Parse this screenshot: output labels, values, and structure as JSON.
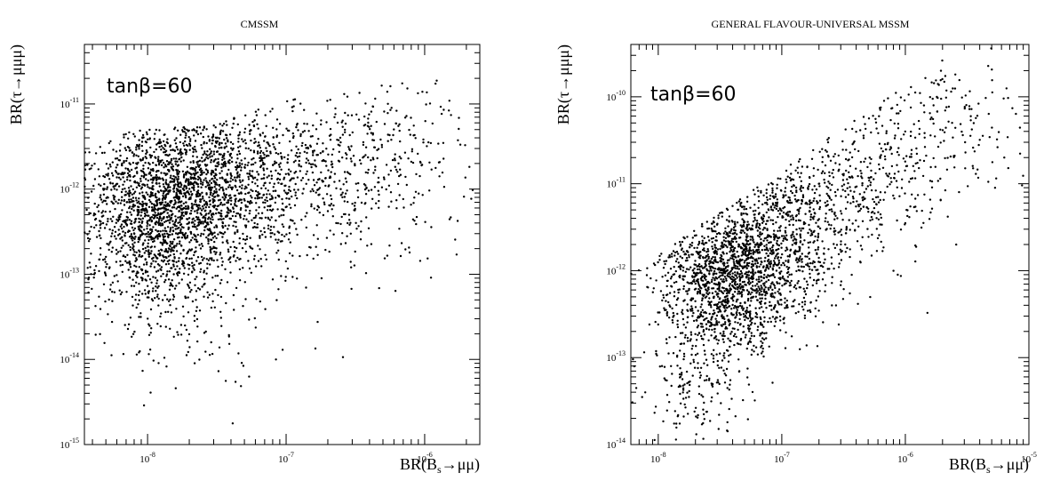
{
  "chart_data": [
    {
      "type": "scatter",
      "title": "CMSSM",
      "xlabel": "BR(B_s→μμ)",
      "ylabel": "BR(τ→μμμ)",
      "xscale": "log",
      "yscale": "log",
      "xlim": [
        3.5e-09,
        2.5e-06
      ],
      "ylim": [
        1e-15,
        5e-11
      ],
      "x_ticks": [
        1e-08,
        1e-07,
        1e-06
      ],
      "y_ticks": [
        1e-15,
        1e-14,
        1e-13,
        1e-12,
        1e-11
      ],
      "x_tick_labels": [
        "10",
        "10",
        "10"
      ],
      "x_tick_exponents": [
        "-8",
        "-7",
        "-6"
      ],
      "y_tick_labels": [
        "10",
        "10",
        "10",
        "10",
        "10"
      ],
      "y_tick_exponents": [
        "-15",
        "-14",
        "-13",
        "-12",
        "-11"
      ],
      "annotation": "tanβ=60",
      "grid": false,
      "approx_points": 3300,
      "regions": [
        {
          "x_center": 1.2e-08,
          "y_center": 5e-13,
          "x_spread_dex": 0.28,
          "y_spread_dex": 0.55,
          "weight": 0.45
        },
        {
          "x_center": 3e-08,
          "y_center": 1.2e-12,
          "x_spread_dex": 0.35,
          "y_spread_dex": 0.45,
          "weight": 0.3
        },
        {
          "x_center": 1.5e-07,
          "y_center": 1.5e-12,
          "x_spread_dex": 0.45,
          "y_spread_dex": 0.6,
          "weight": 0.17
        },
        {
          "x_center": 6e-07,
          "y_center": 3e-12,
          "x_spread_dex": 0.3,
          "y_spread_dex": 0.55,
          "weight": 0.05
        },
        {
          "x_center": 2e-08,
          "y_center": 3e-14,
          "x_spread_dex": 0.4,
          "y_spread_dex": 0.45,
          "weight": 0.03
        }
      ],
      "envelope": {
        "upper": [
          [
            3.5e-09,
            2e-12
          ],
          [
            8e-09,
            3.5e-12
          ],
          [
            3e-08,
            4e-12
          ],
          [
            1e-07,
            8e-12
          ],
          [
            5e-07,
            1.2e-11
          ],
          [
            1.2e-06,
            1.6e-11
          ],
          [
            2.2e-06,
            3e-12
          ]
        ],
        "lower": [
          [
            3.5e-09,
            3e-14
          ],
          [
            7e-09,
            5e-15
          ],
          [
            3e-08,
            1e-15
          ],
          [
            2e-07,
            5e-15
          ],
          [
            8e-07,
            1e-14
          ],
          [
            2.2e-06,
            5e-13
          ]
        ]
      }
    },
    {
      "type": "scatter",
      "title": "GENERAL FLAVOUR-UNIVERSAL MSSM",
      "xlabel": "BR(B_s→μμ)",
      "ylabel": "BR(τ→μμμ)",
      "xscale": "log",
      "yscale": "log",
      "xlim": [
        6e-09,
        1e-05
      ],
      "ylim": [
        1e-14,
        4e-10
      ],
      "x_ticks": [
        1e-08,
        1e-07,
        1e-06,
        1e-05
      ],
      "y_ticks": [
        1e-14,
        1e-13,
        1e-12,
        1e-11,
        1e-10
      ],
      "x_tick_labels": [
        "10",
        "10",
        "10",
        "10"
      ],
      "x_tick_exponents": [
        "-8",
        "-7",
        "-6",
        "-5"
      ],
      "y_tick_labels": [
        "10",
        "10",
        "10",
        "10",
        "10"
      ],
      "y_tick_exponents": [
        "-14",
        "-13",
        "-12",
        "-11",
        "-10"
      ],
      "annotation": "tanβ=60",
      "grid": false,
      "approx_points": 2800,
      "regions": [
        {
          "x_center": 3.5e-08,
          "y_center": 8e-13,
          "x_spread_dex": 0.28,
          "y_spread_dex": 0.42,
          "weight": 0.5
        },
        {
          "x_center": 1e-07,
          "y_center": 2.5e-12,
          "x_spread_dex": 0.3,
          "y_spread_dex": 0.45,
          "weight": 0.25
        },
        {
          "x_center": 4e-07,
          "y_center": 1e-11,
          "x_spread_dex": 0.35,
          "y_spread_dex": 0.45,
          "weight": 0.13
        },
        {
          "x_center": 2e-06,
          "y_center": 5e-11,
          "x_spread_dex": 0.35,
          "y_spread_dex": 0.45,
          "weight": 0.07
        },
        {
          "x_center": 2e-08,
          "y_center": 5e-14,
          "x_spread_dex": 0.2,
          "y_spread_dex": 0.3,
          "weight": 0.05
        }
      ],
      "envelope": {
        "slope_dex_per_dex": 1.0,
        "upper_at_xmin": 3e-13,
        "lower_at_xmin": 1e-14,
        "upper_at_xmax": 4e-10,
        "lower_at_xmax": 1e-12
      }
    }
  ]
}
